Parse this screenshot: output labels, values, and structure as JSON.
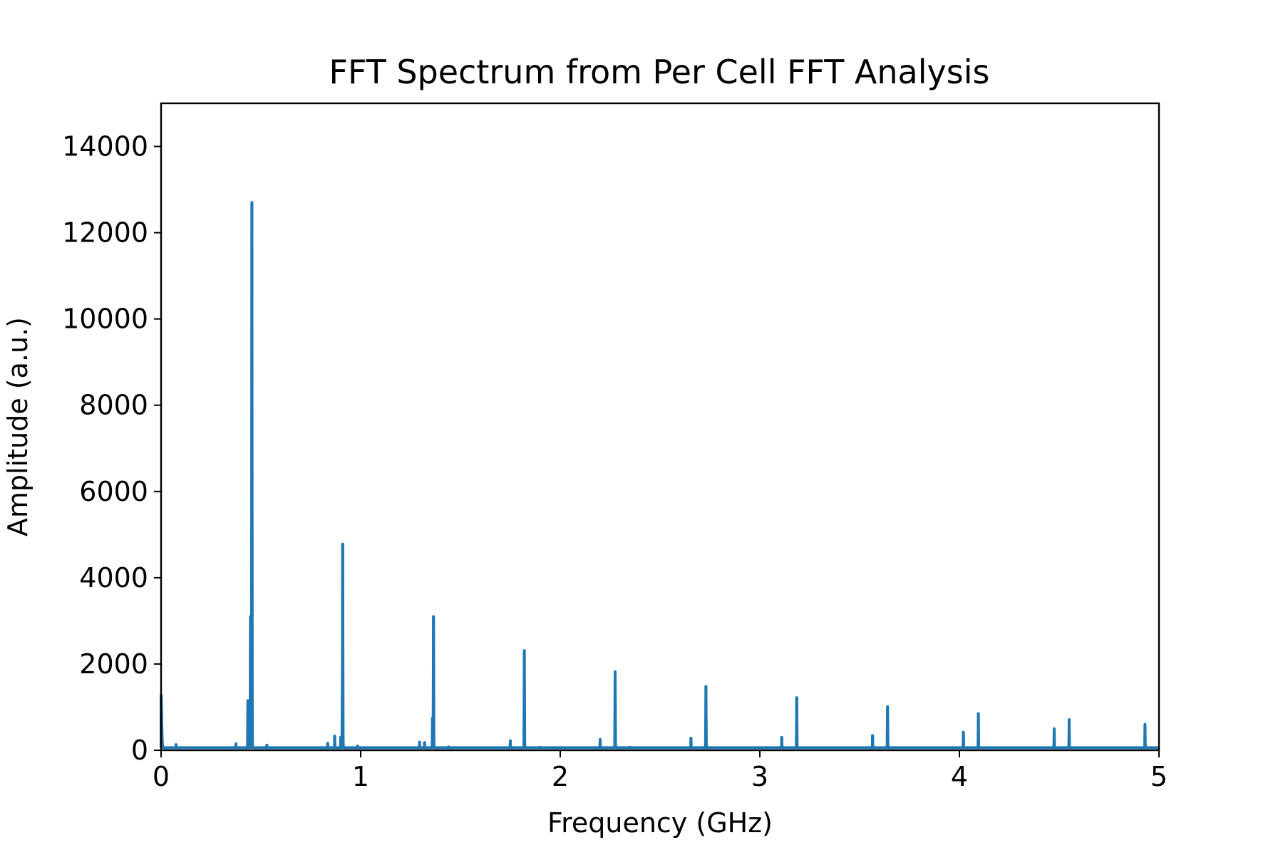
{
  "chart_data": {
    "type": "line",
    "title": "FFT Spectrum from Per Cell FFT Analysis",
    "xlabel": "Frequency (GHz)",
    "ylabel": "Amplitude (a.u.)",
    "xlim": [
      0,
      5
    ],
    "ylim": [
      0,
      15000
    ],
    "xticks": [
      0,
      1,
      2,
      3,
      4,
      5
    ],
    "yticks": [
      0,
      2000,
      4000,
      6000,
      8000,
      10000,
      12000,
      14000
    ],
    "grid": false,
    "legend": "none",
    "series": [
      {
        "color": "#1f77b4",
        "baseline": 60,
        "peaks": [
          {
            "f": 0.0,
            "a": 1300
          },
          {
            "f": 0.075,
            "a": 130
          },
          {
            "f": 0.375,
            "a": 150
          },
          {
            "f": 0.435,
            "a": 1150
          },
          {
            "f": 0.448,
            "a": 3100
          },
          {
            "f": 0.455,
            "a": 12700
          },
          {
            "f": 0.53,
            "a": 120
          },
          {
            "f": 0.835,
            "a": 160
          },
          {
            "f": 0.87,
            "a": 330
          },
          {
            "f": 0.9,
            "a": 300
          },
          {
            "f": 0.908,
            "a": 1200
          },
          {
            "f": 0.91,
            "a": 4780
          },
          {
            "f": 0.985,
            "a": 100
          },
          {
            "f": 1.295,
            "a": 190
          },
          {
            "f": 1.32,
            "a": 180
          },
          {
            "f": 1.36,
            "a": 750
          },
          {
            "f": 1.365,
            "a": 3100
          },
          {
            "f": 1.44,
            "a": 80
          },
          {
            "f": 1.75,
            "a": 220
          },
          {
            "f": 1.82,
            "a": 2310
          },
          {
            "f": 1.9,
            "a": 70
          },
          {
            "f": 2.2,
            "a": 250
          },
          {
            "f": 2.275,
            "a": 1820
          },
          {
            "f": 2.35,
            "a": 70
          },
          {
            "f": 2.655,
            "a": 280
          },
          {
            "f": 2.73,
            "a": 1480
          },
          {
            "f": 3.11,
            "a": 300
          },
          {
            "f": 3.185,
            "a": 1220
          },
          {
            "f": 3.565,
            "a": 340
          },
          {
            "f": 3.64,
            "a": 1010
          },
          {
            "f": 4.02,
            "a": 420
          },
          {
            "f": 4.095,
            "a": 850
          },
          {
            "f": 4.475,
            "a": 500
          },
          {
            "f": 4.55,
            "a": 710
          },
          {
            "f": 4.93,
            "a": 600
          }
        ]
      }
    ]
  }
}
